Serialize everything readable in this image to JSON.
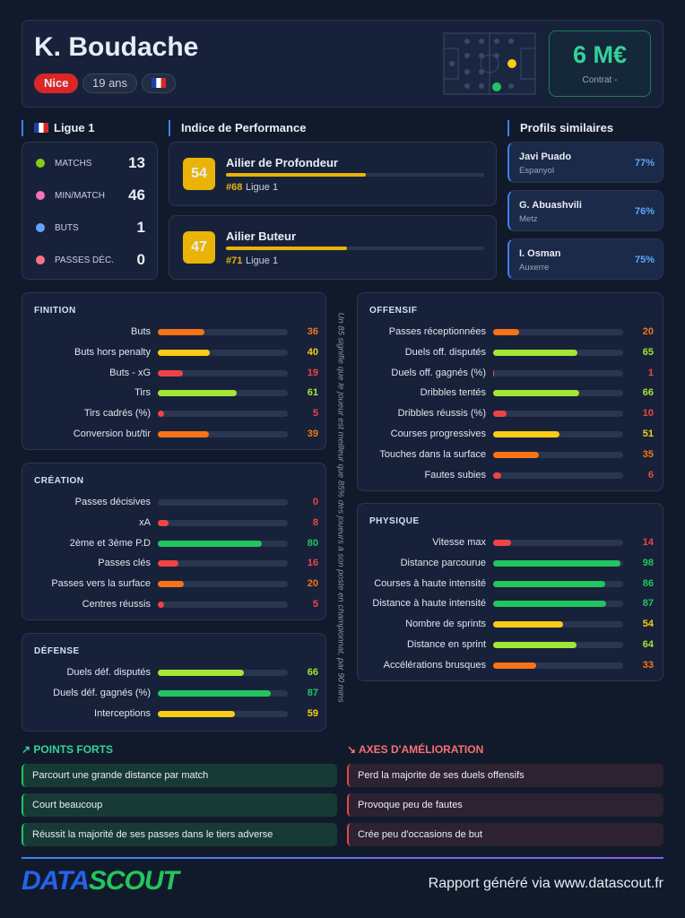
{
  "header": {
    "name": "K. Boudache",
    "club": "Nice",
    "age": "19 ans",
    "value": "6 M€",
    "contract": "Contrat -"
  },
  "league": {
    "name": "Ligue 1",
    "stats": [
      {
        "label": "MATCHS",
        "value": 13
      },
      {
        "label": "MIN/MATCH",
        "value": 46
      },
      {
        "label": "BUTS",
        "value": 1
      },
      {
        "label": "PASSES DÉC.",
        "value": 0
      }
    ]
  },
  "performance": {
    "title": "Indice de Performance",
    "items": [
      {
        "score": 54,
        "role": "Ailier de Profondeur",
        "rank": "#68",
        "league": "Ligue 1"
      },
      {
        "score": 47,
        "role": "Ailier Buteur",
        "rank": "#71",
        "league": "Ligue 1"
      }
    ]
  },
  "similar": {
    "title": "Profils similaires",
    "items": [
      {
        "name": "Javi Puado",
        "club": "Espanyol",
        "match": "77%"
      },
      {
        "name": "G. Abuashvili",
        "club": "Metz",
        "match": "76%"
      },
      {
        "name": "I. Osman",
        "club": "Auxerre",
        "match": "75%"
      }
    ]
  },
  "sections": [
    {
      "title": "FINITION",
      "rows": [
        {
          "label": "Buts",
          "value": 36
        },
        {
          "label": "Buts hors penalty",
          "value": 40
        },
        {
          "label": "Buts - xG",
          "value": 19
        },
        {
          "label": "Tirs",
          "value": 61
        },
        {
          "label": "Tirs cadrés (%)",
          "value": 5
        },
        {
          "label": "Conversion but/tir",
          "value": 39
        }
      ]
    },
    {
      "title": "CRÉATION",
      "rows": [
        {
          "label": "Passes décisives",
          "value": 0
        },
        {
          "label": "xA",
          "value": 8
        },
        {
          "label": "2ème et 3ème P.D",
          "value": 80
        },
        {
          "label": "Passes clés",
          "value": 16
        },
        {
          "label": "Passes vers la surface",
          "value": 20
        },
        {
          "label": "Centres réussis",
          "value": 5
        }
      ]
    },
    {
      "title": "DÉFENSE",
      "rows": [
        {
          "label": "Duels déf. disputés",
          "value": 66
        },
        {
          "label": "Duels déf. gagnés (%)",
          "value": 87
        },
        {
          "label": "Interceptions",
          "value": 59
        }
      ]
    },
    {
      "title": "OFFENSIF",
      "rows": [
        {
          "label": "Passes réceptionnées",
          "value": 20
        },
        {
          "label": "Duels off. disputés",
          "value": 65
        },
        {
          "label": "Duels off. gagnés (%)",
          "value": 1
        },
        {
          "label": "Dribbles tentés",
          "value": 66
        },
        {
          "label": "Dribbles réussis (%)",
          "value": 10
        },
        {
          "label": "Courses progressives",
          "value": 51
        },
        {
          "label": "Touches dans la surface",
          "value": 35
        },
        {
          "label": "Fautes subies",
          "value": 6
        }
      ]
    },
    {
      "title": "PHYSIQUE",
      "rows": [
        {
          "label": "Vitesse max",
          "value": 14
        },
        {
          "label": "Distance parcourue",
          "value": 98
        },
        {
          "label": "Courses à haute intensité",
          "value": 86
        },
        {
          "label": "Distance à haute intensité",
          "value": 87
        },
        {
          "label": "Nombre de sprints",
          "value": 54
        },
        {
          "label": "Distance en sprint",
          "value": 64
        },
        {
          "label": "Accélérations brusques",
          "value": 33
        }
      ]
    }
  ],
  "note": "Un 85 signifie que le joueur est meilleur que 85% des joueurs à son poste en championnat, par 90 mins",
  "strengths": {
    "title": "POINTS FORTS",
    "items": [
      "Parcourt une grande distance par match",
      "Court beaucoup",
      "Réussit la majorité de ses passes dans le tiers adverse"
    ]
  },
  "weaknesses": {
    "title": "AXES D'AMÉLIORATION",
    "items": [
      "Perd la majorite de ses duels offensifs",
      "Provoque peu de fautes",
      "Crée peu d'occasions de but"
    ]
  },
  "footer": {
    "logo_a": "DATA",
    "logo_b": "SCOUT",
    "text": "Rapport généré via www.datascout.fr"
  }
}
